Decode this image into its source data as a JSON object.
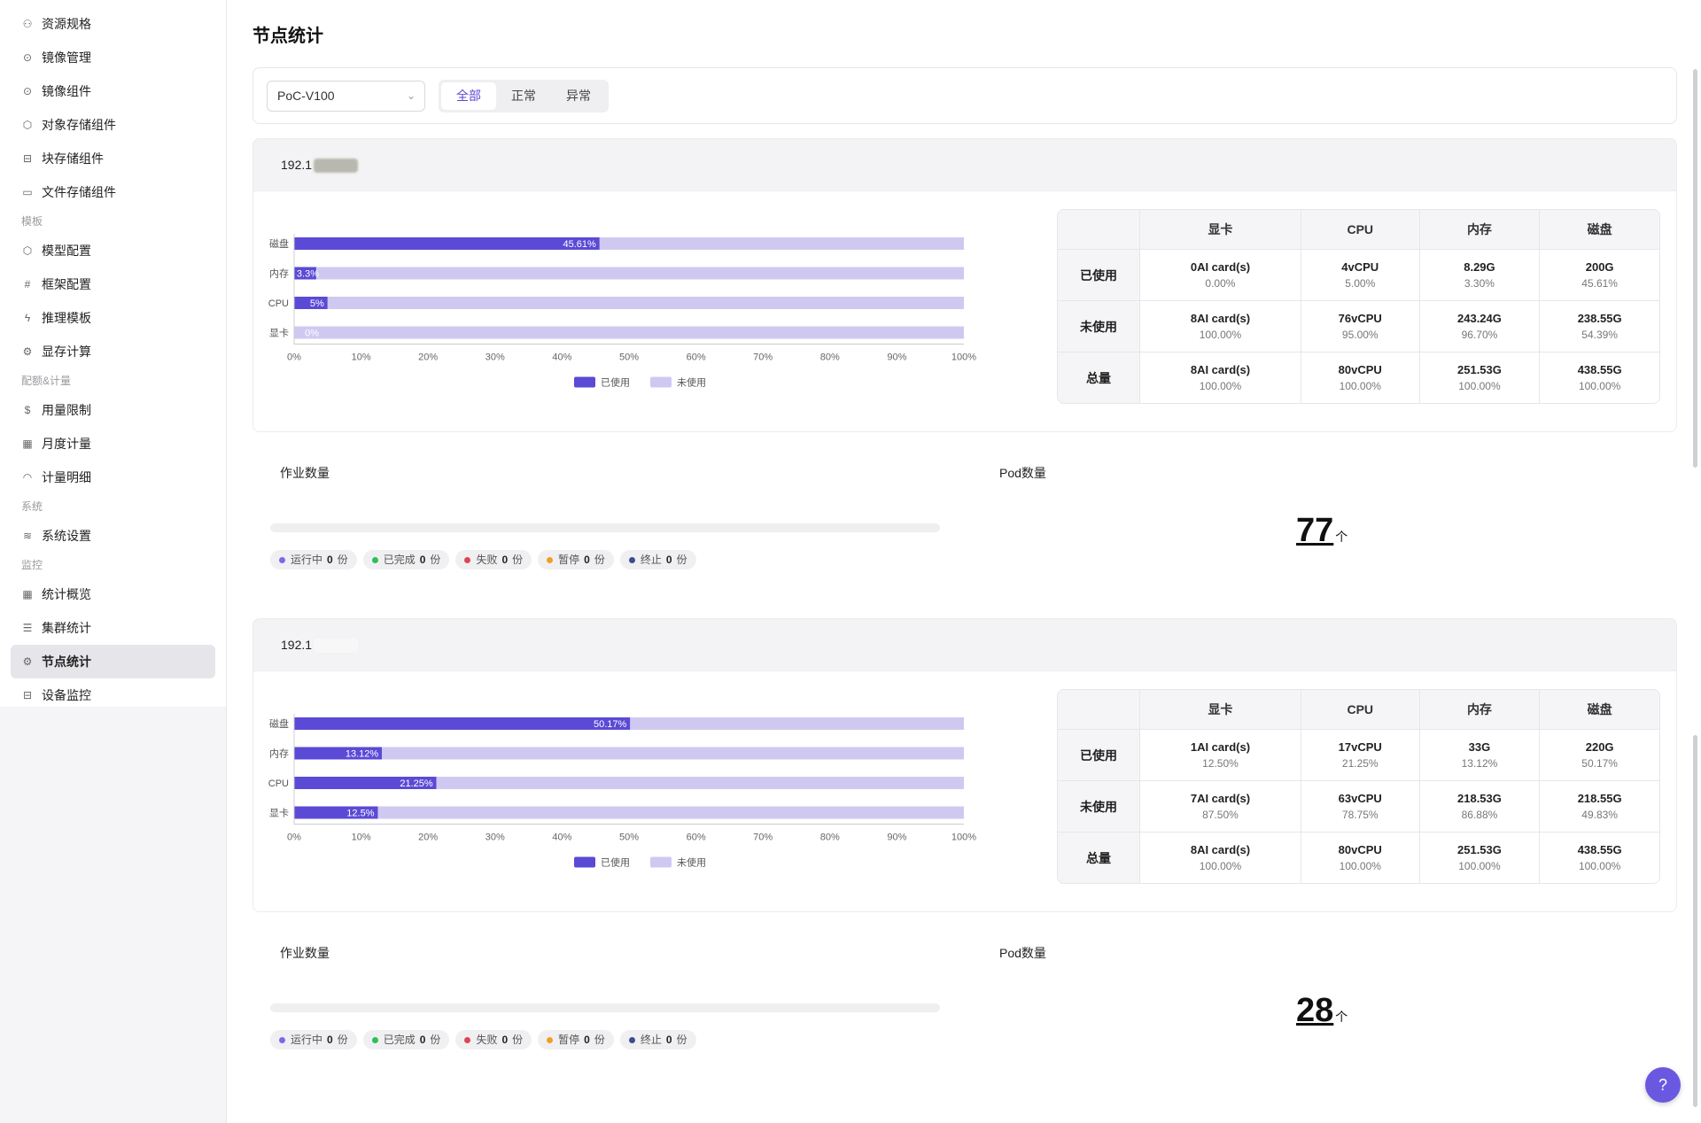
{
  "sidebar": {
    "items": [
      {
        "type": "item",
        "label": "资源规格",
        "icon": "resource-spec-icon",
        "glyph": "⚇"
      },
      {
        "type": "item",
        "label": "镜像管理",
        "icon": "image-management-icon",
        "glyph": "⊙"
      },
      {
        "type": "item",
        "label": "镜像组件",
        "icon": "image-component-icon",
        "glyph": "⊙"
      },
      {
        "type": "item",
        "label": "对象存储组件",
        "icon": "cube-icon",
        "glyph": "⬡"
      },
      {
        "type": "item",
        "label": "块存储组件",
        "icon": "disk-icon",
        "glyph": "⊟"
      },
      {
        "type": "item",
        "label": "文件存储组件",
        "icon": "folder-icon",
        "glyph": "▭"
      },
      {
        "type": "group",
        "label": "模板"
      },
      {
        "type": "item",
        "label": "模型配置",
        "icon": "model-icon",
        "glyph": "⬡"
      },
      {
        "type": "item",
        "label": "框架配置",
        "icon": "hash-icon",
        "glyph": "#"
      },
      {
        "type": "item",
        "label": "推理模板",
        "icon": "lightning-icon",
        "glyph": "ϟ"
      },
      {
        "type": "item",
        "label": "显存计算",
        "icon": "gear-icon",
        "glyph": "⚙"
      },
      {
        "type": "group",
        "label": "配额&计量"
      },
      {
        "type": "item",
        "label": "用量限制",
        "icon": "dollar-icon",
        "glyph": "$"
      },
      {
        "type": "item",
        "label": "月度计量",
        "icon": "calendar-icon",
        "glyph": "▦"
      },
      {
        "type": "item",
        "label": "计量明细",
        "icon": "gauge-icon",
        "glyph": "◠"
      },
      {
        "type": "group",
        "label": "系统"
      },
      {
        "type": "item",
        "label": "系统设置",
        "icon": "layers-icon",
        "glyph": "≋"
      },
      {
        "type": "group",
        "label": "监控"
      },
      {
        "type": "item",
        "label": "统计概览",
        "icon": "dashboard-icon",
        "glyph": "▦"
      },
      {
        "type": "item",
        "label": "集群统计",
        "icon": "server-icon",
        "glyph": "☰"
      },
      {
        "type": "item",
        "label": "节点统计",
        "icon": "chip-icon",
        "glyph": "⚙",
        "active": true
      },
      {
        "type": "item",
        "label": "设备监控",
        "icon": "device-icon",
        "glyph": "⊟"
      }
    ]
  },
  "page": {
    "title": "节点统计"
  },
  "filter": {
    "select_value": "PoC-V100",
    "segments": [
      "全部",
      "正常",
      "异常"
    ],
    "active_segment": 0
  },
  "legend": {
    "used": "已使用",
    "unused": "未使用"
  },
  "colors": {
    "used": "#5b4ad6",
    "unused": "#cfc9f2",
    "accent": "#5b4ad6"
  },
  "table_headers": [
    "",
    "显卡",
    "CPU",
    "内存",
    "磁盘"
  ],
  "chip_unit": "份",
  "job_labels": {
    "jobs": "作业数量",
    "pods": "Pod数量",
    "pod_unit": "个"
  },
  "nodes": [
    {
      "ip": "192.1",
      "chart_data": {
        "type": "bar",
        "categories": [
          "磁盘",
          "内存",
          "CPU",
          "显卡"
        ],
        "series": [
          {
            "name": "已使用",
            "values": [
              45.61,
              3.3,
              5,
              0
            ]
          },
          {
            "name": "未使用",
            "values": [
              54.39,
              96.7,
              95,
              100
            ]
          }
        ],
        "data_labels": [
          "45.61%",
          "3.3%",
          "5%",
          "0%"
        ],
        "xticks": [
          "0%",
          "10%",
          "20%",
          "30%",
          "40%",
          "50%",
          "60%",
          "70%",
          "80%",
          "90%",
          "100%"
        ],
        "xlim": [
          0,
          100
        ],
        "legend": "bottom"
      },
      "table": [
        {
          "label": "已使用",
          "cells": [
            [
              "0AI card(s)",
              "0.00%"
            ],
            [
              "4vCPU",
              "5.00%"
            ],
            [
              "8.29G",
              "3.30%"
            ],
            [
              "200G",
              "45.61%"
            ]
          ]
        },
        {
          "label": "未使用",
          "cells": [
            [
              "8AI card(s)",
              "100.00%"
            ],
            [
              "76vCPU",
              "95.00%"
            ],
            [
              "243.24G",
              "96.70%"
            ],
            [
              "238.55G",
              "54.39%"
            ]
          ]
        },
        {
          "label": "总量",
          "cells": [
            [
              "8AI card(s)",
              "100.00%"
            ],
            [
              "80vCPU",
              "100.00%"
            ],
            [
              "251.53G",
              "100.00%"
            ],
            [
              "438.55G",
              "100.00%"
            ]
          ]
        }
      ],
      "jobs": [
        {
          "label": "运行中",
          "count": "0",
          "color": "#7b68ee"
        },
        {
          "label": "已完成",
          "count": "0",
          "color": "#2fbf5a"
        },
        {
          "label": "失败",
          "count": "0",
          "color": "#e0454f"
        },
        {
          "label": "暂停",
          "count": "0",
          "color": "#f0a020"
        },
        {
          "label": "终止",
          "count": "0",
          "color": "#3d4f8a"
        }
      ],
      "pod_count": "77"
    },
    {
      "ip": "192.1",
      "chart_data": {
        "type": "bar",
        "categories": [
          "磁盘",
          "内存",
          "CPU",
          "显卡"
        ],
        "series": [
          {
            "name": "已使用",
            "values": [
              50.17,
              13.12,
              21.25,
              12.5
            ]
          },
          {
            "name": "未使用",
            "values": [
              49.83,
              86.88,
              78.75,
              87.5
            ]
          }
        ],
        "data_labels": [
          "50.17%",
          "13.12%",
          "21.25%",
          "12.5%"
        ],
        "xticks": [
          "0%",
          "10%",
          "20%",
          "30%",
          "40%",
          "50%",
          "60%",
          "70%",
          "80%",
          "90%",
          "100%"
        ],
        "xlim": [
          0,
          100
        ],
        "legend": "bottom"
      },
      "table": [
        {
          "label": "已使用",
          "cells": [
            [
              "1AI card(s)",
              "12.50%"
            ],
            [
              "17vCPU",
              "21.25%"
            ],
            [
              "33G",
              "13.12%"
            ],
            [
              "220G",
              "50.17%"
            ]
          ]
        },
        {
          "label": "未使用",
          "cells": [
            [
              "7AI card(s)",
              "87.50%"
            ],
            [
              "63vCPU",
              "78.75%"
            ],
            [
              "218.53G",
              "86.88%"
            ],
            [
              "218.55G",
              "49.83%"
            ]
          ]
        },
        {
          "label": "总量",
          "cells": [
            [
              "8AI card(s)",
              "100.00%"
            ],
            [
              "80vCPU",
              "100.00%"
            ],
            [
              "251.53G",
              "100.00%"
            ],
            [
              "438.55G",
              "100.00%"
            ]
          ]
        }
      ],
      "jobs": [
        {
          "label": "运行中",
          "count": "0",
          "color": "#7b68ee"
        },
        {
          "label": "已完成",
          "count": "0",
          "color": "#2fbf5a"
        },
        {
          "label": "失败",
          "count": "0",
          "color": "#e0454f"
        },
        {
          "label": "暂停",
          "count": "0",
          "color": "#f0a020"
        },
        {
          "label": "终止",
          "count": "0",
          "color": "#3d4f8a"
        }
      ],
      "pod_count": "28"
    }
  ]
}
